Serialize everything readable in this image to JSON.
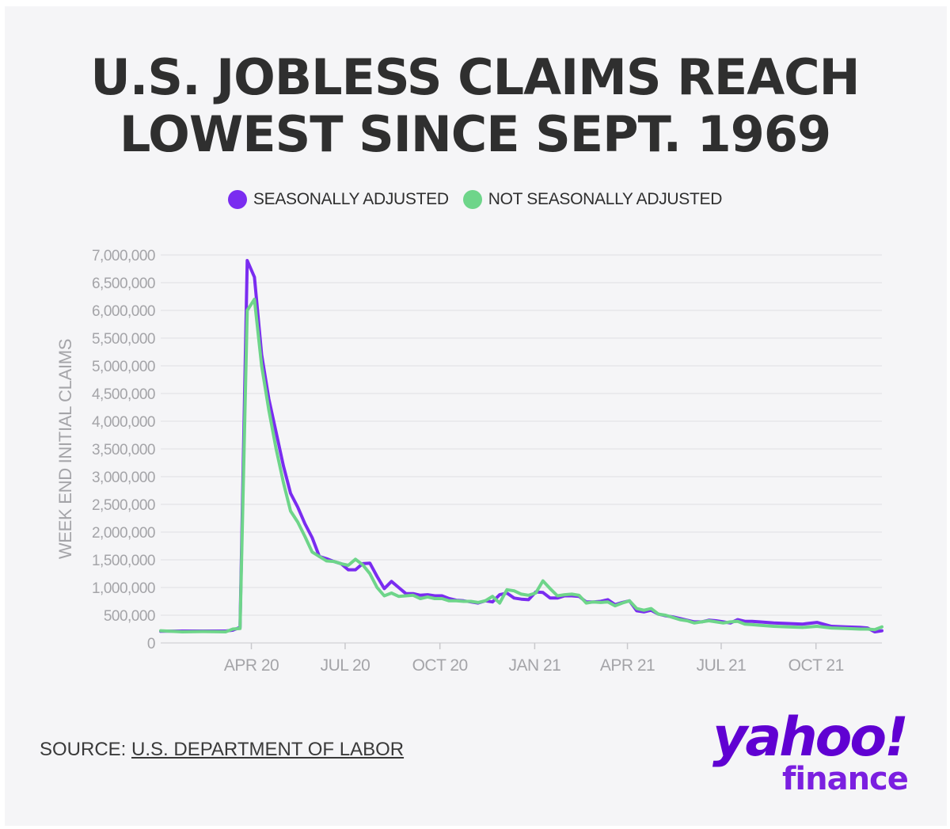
{
  "title_lines": [
    "U.S. JOBLESS CLAIMS REACH",
    "LOWEST SINCE SEPT. 1969"
  ],
  "colors": {
    "seasonally_adjusted": "#7a2cf0",
    "not_seasonally_adjusted": "#6ed58a",
    "grid": "#e6e6ea",
    "tick_text": "#a4a4a8",
    "brand": "#6001d2"
  },
  "source": {
    "label": "SOURCE: ",
    "link_text": "U.S. DEPARTMENT OF LABOR"
  },
  "brand": {
    "yahoo": "yahoo!",
    "finance": "finance"
  },
  "chart_data": {
    "type": "line",
    "ylabel": "WEEK END INITIAL CLAIMS",
    "ylim": [
      0,
      7000000
    ],
    "y_ticks": [
      0,
      500000,
      1000000,
      1500000,
      2000000,
      2500000,
      3000000,
      3500000,
      4000000,
      4500000,
      5000000,
      5500000,
      6000000,
      6500000,
      7000000
    ],
    "y_tick_labels": [
      "0",
      "500,000",
      "1,000,000",
      "1,500,000",
      "2,000,000",
      "2,500,000",
      "3,000,000",
      "3,500,000",
      "4,000,000",
      "4,500,000",
      "5,000,000",
      "5,500,000",
      "6,000,000",
      "6,500,000",
      "7,000,000"
    ],
    "x_ticks": [
      {
        "label": "APR 20",
        "x": "2020-04-01"
      },
      {
        "label": "JUL 20",
        "x": "2020-07-01"
      },
      {
        "label": "OCT 20",
        "x": "2020-10-01"
      },
      {
        "label": "JAN 21",
        "x": "2021-01-01"
      },
      {
        "label": "APR 21",
        "x": "2021-04-01"
      },
      {
        "label": "JUL 21",
        "x": "2021-07-01"
      },
      {
        "label": "OCT 21",
        "x": "2021-10-01"
      }
    ],
    "xlim": [
      "2020-01-04",
      "2021-12-04"
    ],
    "grid": true,
    "legend_position": "top-center",
    "series": [
      {
        "name": "SEASONALLY ADJUSTED",
        "x": [
          "2020-01-04",
          "2020-01-25",
          "2020-02-15",
          "2020-03-07",
          "2020-03-14",
          "2020-03-21",
          "2020-03-28",
          "2020-04-04",
          "2020-04-11",
          "2020-04-18",
          "2020-04-25",
          "2020-05-02",
          "2020-05-09",
          "2020-05-16",
          "2020-05-23",
          "2020-05-30",
          "2020-06-06",
          "2020-06-13",
          "2020-06-20",
          "2020-06-27",
          "2020-07-04",
          "2020-07-11",
          "2020-07-18",
          "2020-07-25",
          "2020-08-01",
          "2020-08-08",
          "2020-08-15",
          "2020-08-22",
          "2020-08-29",
          "2020-09-05",
          "2020-09-12",
          "2020-09-19",
          "2020-09-26",
          "2020-10-03",
          "2020-10-10",
          "2020-10-17",
          "2020-10-24",
          "2020-10-31",
          "2020-11-07",
          "2020-11-14",
          "2020-11-21",
          "2020-11-28",
          "2020-12-05",
          "2020-12-12",
          "2020-12-19",
          "2020-12-26",
          "2021-01-02",
          "2021-01-09",
          "2021-01-16",
          "2021-01-23",
          "2021-01-30",
          "2021-02-06",
          "2021-02-13",
          "2021-02-20",
          "2021-02-27",
          "2021-03-06",
          "2021-03-13",
          "2021-03-20",
          "2021-03-27",
          "2021-04-03",
          "2021-04-10",
          "2021-04-17",
          "2021-04-24",
          "2021-05-01",
          "2021-05-08",
          "2021-05-15",
          "2021-05-22",
          "2021-05-29",
          "2021-06-05",
          "2021-06-12",
          "2021-06-19",
          "2021-06-26",
          "2021-07-03",
          "2021-07-10",
          "2021-07-17",
          "2021-07-24",
          "2021-07-31",
          "2021-08-07",
          "2021-08-21",
          "2021-09-04",
          "2021-09-18",
          "2021-10-02",
          "2021-10-16",
          "2021-10-30",
          "2021-11-13",
          "2021-11-20",
          "2021-11-27",
          "2021-12-04"
        ],
        "values": [
          210000,
          215000,
          215000,
          215000,
          230000,
          280000,
          6900000,
          6600000,
          5200000,
          4400000,
          3800000,
          3200000,
          2700000,
          2450000,
          2150000,
          1900000,
          1560000,
          1520000,
          1470000,
          1430000,
          1320000,
          1320000,
          1430000,
          1440000,
          1200000,
          980000,
          1110000,
          1000000,
          890000,
          890000,
          860000,
          870000,
          850000,
          850000,
          800000,
          770000,
          760000,
          740000,
          720000,
          760000,
          740000,
          870000,
          900000,
          810000,
          790000,
          780000,
          920000,
          910000,
          810000,
          810000,
          850000,
          850000,
          840000,
          740000,
          740000,
          750000,
          780000,
          690000,
          730000,
          760000,
          580000,
          560000,
          590000,
          520000,
          490000,
          470000,
          440000,
          410000,
          380000,
          380000,
          410000,
          400000,
          380000,
          360000,
          420000,
          390000,
          390000,
          380000,
          360000,
          350000,
          340000,
          370000,
          300000,
          290000,
          280000,
          270000,
          200000,
          220000
        ]
      },
      {
        "name": "NOT SEASONALLY ADJUSTED",
        "x": [
          "2020-01-04",
          "2020-01-25",
          "2020-02-15",
          "2020-03-07",
          "2020-03-14",
          "2020-03-21",
          "2020-03-28",
          "2020-04-04",
          "2020-04-11",
          "2020-04-18",
          "2020-04-25",
          "2020-05-02",
          "2020-05-09",
          "2020-05-16",
          "2020-05-23",
          "2020-05-30",
          "2020-06-06",
          "2020-06-13",
          "2020-06-20",
          "2020-06-27",
          "2020-07-04",
          "2020-07-11",
          "2020-07-18",
          "2020-07-25",
          "2020-08-01",
          "2020-08-08",
          "2020-08-15",
          "2020-08-22",
          "2020-08-29",
          "2020-09-05",
          "2020-09-12",
          "2020-09-19",
          "2020-09-26",
          "2020-10-03",
          "2020-10-10",
          "2020-10-17",
          "2020-10-24",
          "2020-10-31",
          "2020-11-07",
          "2020-11-14",
          "2020-11-21",
          "2020-11-28",
          "2020-12-05",
          "2020-12-12",
          "2020-12-19",
          "2020-12-26",
          "2021-01-02",
          "2021-01-09",
          "2021-01-16",
          "2021-01-23",
          "2021-01-30",
          "2021-02-06",
          "2021-02-13",
          "2021-02-20",
          "2021-02-27",
          "2021-03-06",
          "2021-03-13",
          "2021-03-20",
          "2021-03-27",
          "2021-04-03",
          "2021-04-10",
          "2021-04-17",
          "2021-04-24",
          "2021-05-01",
          "2021-05-08",
          "2021-05-15",
          "2021-05-22",
          "2021-05-29",
          "2021-06-05",
          "2021-06-12",
          "2021-06-19",
          "2021-06-26",
          "2021-07-03",
          "2021-07-10",
          "2021-07-17",
          "2021-07-24",
          "2021-07-31",
          "2021-08-07",
          "2021-08-21",
          "2021-09-04",
          "2021-09-18",
          "2021-10-02",
          "2021-10-16",
          "2021-10-30",
          "2021-11-13",
          "2021-11-20",
          "2021-11-27",
          "2021-12-04"
        ],
        "values": [
          220000,
          200000,
          205000,
          200000,
          250000,
          260000,
          6000000,
          6200000,
          5000000,
          4200000,
          3500000,
          2900000,
          2380000,
          2180000,
          1920000,
          1640000,
          1560000,
          1480000,
          1470000,
          1430000,
          1400000,
          1510000,
          1410000,
          1250000,
          1000000,
          850000,
          900000,
          840000,
          850000,
          860000,
          800000,
          830000,
          800000,
          800000,
          760000,
          760000,
          750000,
          750000,
          730000,
          760000,
          840000,
          720000,
          960000,
          940000,
          880000,
          860000,
          900000,
          1120000,
          980000,
          850000,
          870000,
          880000,
          860000,
          720000,
          740000,
          730000,
          740000,
          670000,
          720000,
          760000,
          620000,
          590000,
          620000,
          520000,
          500000,
          460000,
          420000,
          400000,
          360000,
          380000,
          400000,
          380000,
          360000,
          380000,
          390000,
          340000,
          330000,
          320000,
          300000,
          290000,
          280000,
          300000,
          270000,
          260000,
          250000,
          250000,
          240000,
          290000
        ]
      }
    ]
  }
}
